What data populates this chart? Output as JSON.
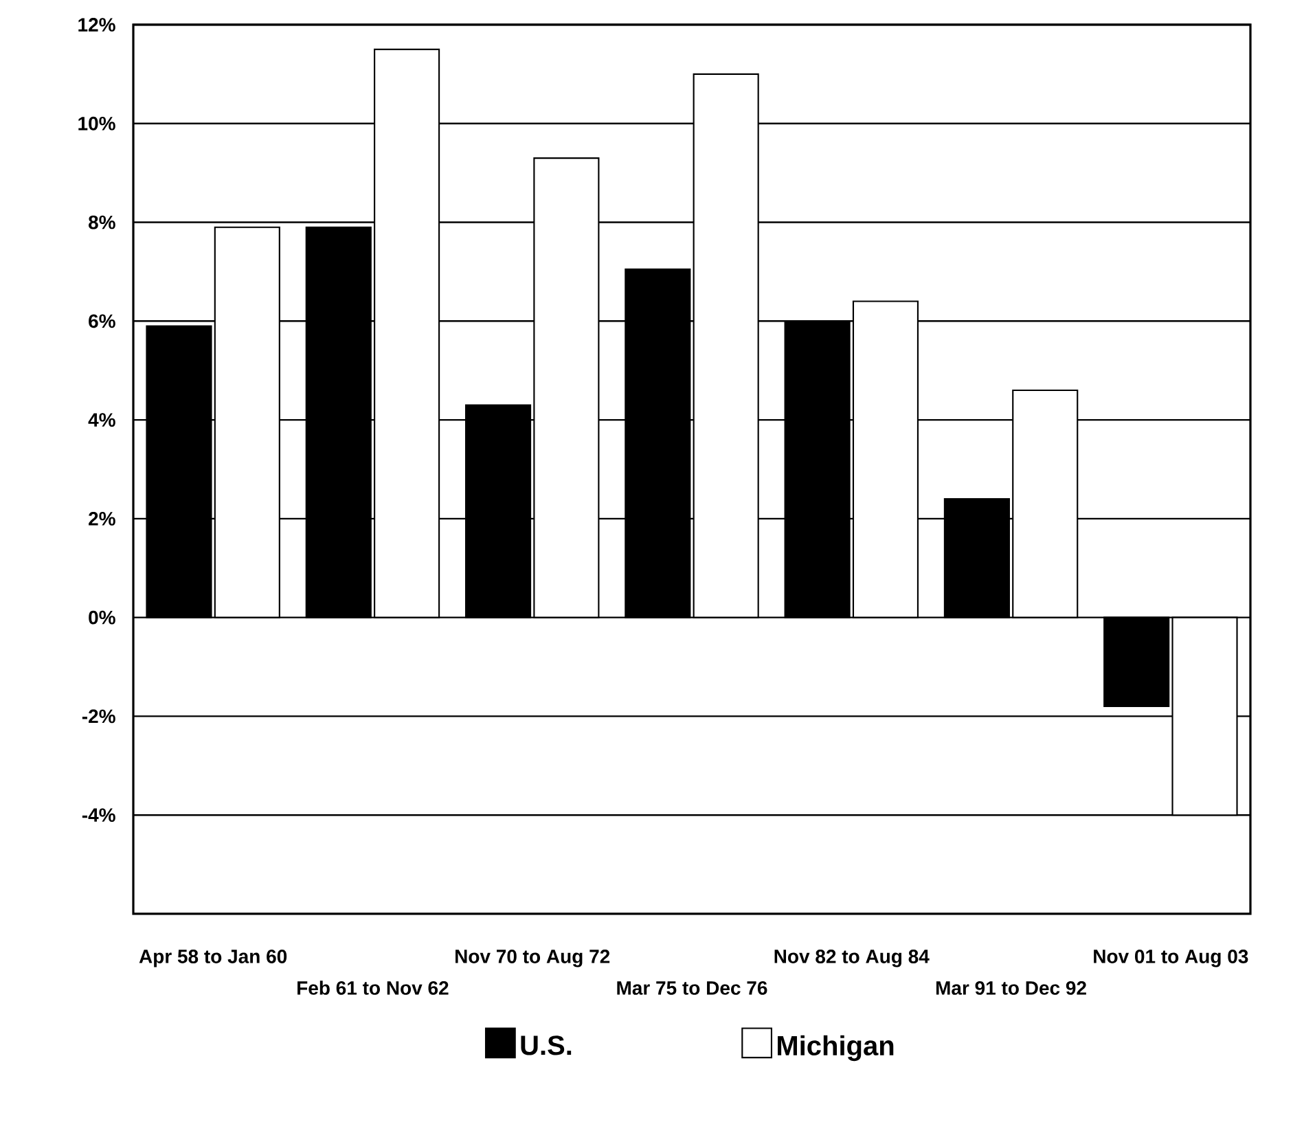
{
  "chart_data": {
    "type": "bar",
    "categories": [
      "Apr 58 to Jan 60",
      "Feb 61 to Nov 62",
      "Nov 70 to Aug 72",
      "Mar 75 to Dec 76",
      "Nov 82 to Aug 84",
      "Mar 91 to Dec 92",
      "Nov 01 to Aug 03"
    ],
    "series": [
      {
        "name": "U.S.",
        "color": "#000000",
        "values": [
          5.9,
          7.9,
          4.3,
          7.05,
          6.0,
          2.4,
          -1.8
        ]
      },
      {
        "name": "Michigan",
        "color": "#ffffff",
        "values": [
          7.9,
          11.5,
          9.3,
          11.0,
          6.4,
          4.6,
          -4.0
        ]
      }
    ],
    "ylim": [
      -6,
      12
    ],
    "yticks": [
      {
        "value": -4,
        "label": "-4%"
      },
      {
        "value": -2,
        "label": "-2%"
      },
      {
        "value": 0,
        "label": "0%"
      },
      {
        "value": 2,
        "label": "2%"
      },
      {
        "value": 4,
        "label": "4%"
      },
      {
        "value": 6,
        "label": "6%"
      },
      {
        "value": 8,
        "label": "8%"
      },
      {
        "value": 10,
        "label": "10%"
      },
      {
        "value": 12,
        "label": "12%"
      }
    ],
    "grid": "y",
    "legend": "bottom"
  }
}
